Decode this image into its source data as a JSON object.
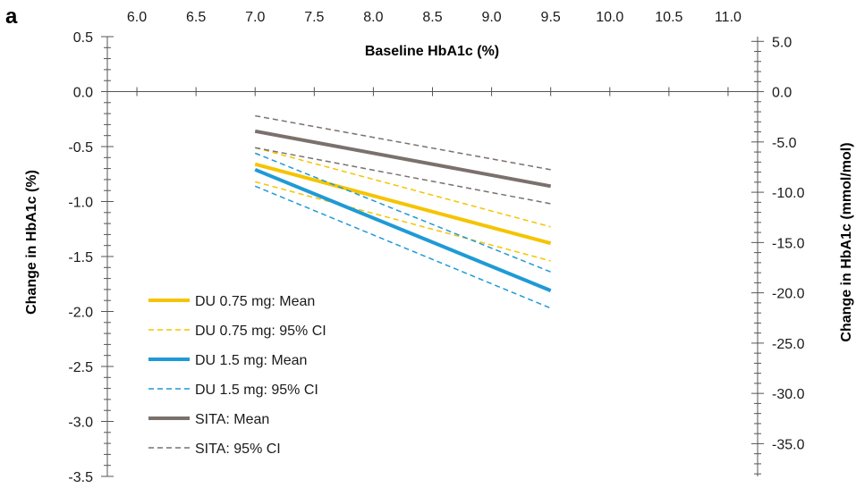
{
  "chart_data": {
    "type": "line",
    "panel_label": "a",
    "xlabel": "Baseline HbA1c (%)",
    "ylabel": "Change in HbA1c (%)",
    "y2label": "Change in HbA1c (mmol/mol)",
    "xlim": [
      5.75,
      11.25
    ],
    "ylim": [
      -3.5,
      0.5
    ],
    "y2lim": [
      -38.25,
      5.47
    ],
    "x_ticks": [
      "6.0",
      "6.5",
      "7.0",
      "7.5",
      "8.0",
      "8.5",
      "9.0",
      "9.5",
      "10.0",
      "10.5",
      "11.0"
    ],
    "y_ticks": [
      "0.5",
      "0.0",
      "-0.5",
      "-1.0",
      "-1.5",
      "-2.0",
      "-2.5",
      "-3.0",
      "-3.5"
    ],
    "y2_ticks": [
      "5.0",
      "0.0",
      "-5.0",
      "-10.0",
      "-15.0",
      "-20.0",
      "-25.0",
      "-30.0",
      "-35.0"
    ],
    "x_axis_position": "top",
    "grid": false,
    "legend_position": "bottom-left",
    "series": [
      {
        "name": "DU 0.75 mg: Mean",
        "x": [
          7.0,
          9.5
        ],
        "y": [
          -0.66,
          -1.38
        ],
        "color": "#F5C400",
        "style": "solid"
      },
      {
        "name": "DU 0.75 mg: 95% CI",
        "x": [
          7.0,
          9.5
        ],
        "y": [
          -0.51,
          -1.23
        ],
        "color": "#F5C400",
        "style": "dashed",
        "band": "upper"
      },
      {
        "name": "DU 0.75 mg: 95% CI",
        "x": [
          7.0,
          9.5
        ],
        "y": [
          -0.82,
          -1.54
        ],
        "color": "#F5C400",
        "style": "dashed",
        "band": "lower"
      },
      {
        "name": "DU 1.5 mg: Mean",
        "x": [
          7.0,
          9.5
        ],
        "y": [
          -0.71,
          -1.81
        ],
        "color": "#1F9AD6",
        "style": "solid"
      },
      {
        "name": "DU 1.5 mg: 95% CI",
        "x": [
          7.0,
          9.5
        ],
        "y": [
          -0.56,
          -1.64
        ],
        "color": "#1F9AD6",
        "style": "dashed",
        "band": "upper"
      },
      {
        "name": "DU 1.5 mg: 95% CI",
        "x": [
          7.0,
          9.5
        ],
        "y": [
          -0.86,
          -1.97
        ],
        "color": "#1F9AD6",
        "style": "dashed",
        "band": "lower"
      },
      {
        "name": "SITA: Mean",
        "x": [
          7.0,
          9.5
        ],
        "y": [
          -0.36,
          -0.86
        ],
        "color": "#7A716C",
        "style": "solid"
      },
      {
        "name": "SITA: 95% CI",
        "x": [
          7.0,
          9.5
        ],
        "y": [
          -0.22,
          -0.71
        ],
        "color": "#7A716C",
        "style": "dashed",
        "band": "upper"
      },
      {
        "name": "SITA: 95% CI",
        "x": [
          7.0,
          9.5
        ],
        "y": [
          -0.51,
          -1.02
        ],
        "color": "#7A716C",
        "style": "dashed",
        "band": "lower"
      }
    ],
    "legend": [
      {
        "label": "DU 0.75 mg: Mean",
        "color": "#F5C400",
        "style": "solid"
      },
      {
        "label": "DU 0.75 mg: 95% CI",
        "color": "#F5C400",
        "style": "dashed"
      },
      {
        "label": "DU 1.5 mg: Mean",
        "color": "#1F9AD6",
        "style": "solid"
      },
      {
        "label": "DU 1.5 mg: 95% CI",
        "color": "#1F9AD6",
        "style": "dashed"
      },
      {
        "label": "SITA: Mean",
        "color": "#7A716C",
        "style": "solid"
      },
      {
        "label": "SITA: 95% CI",
        "color": "#7A716C",
        "style": "dashed"
      }
    ]
  }
}
